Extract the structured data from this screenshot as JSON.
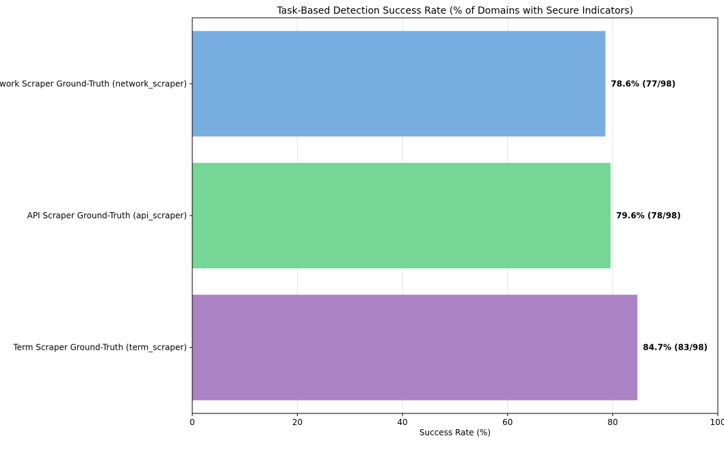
{
  "chart_data": {
    "type": "bar",
    "orientation": "horizontal",
    "title": "Task-Based Detection Success Rate (% of Domains with Secure Indicators)",
    "xlabel": "Success Rate (%)",
    "ylabel": "",
    "xlim": [
      0,
      100
    ],
    "xticks": [
      0,
      20,
      40,
      60,
      80,
      100
    ],
    "xtick_labels": [
      "0",
      "20",
      "40",
      "60",
      "80",
      "100"
    ],
    "grid": "vertical",
    "categories": [
      "Network Scraper Ground-Truth (network_scraper)",
      "API Scraper Ground-Truth (api_scraper)",
      "Term Scraper Ground-Truth (term_scraper)"
    ],
    "values": [
      78.6,
      79.6,
      84.7
    ],
    "data_labels": [
      "78.6% (77/98)",
      "79.6% (78/98)",
      "84.7% (83/98)"
    ],
    "colors": [
      "#78addf",
      "#76d695",
      "#ab83c4"
    ]
  }
}
